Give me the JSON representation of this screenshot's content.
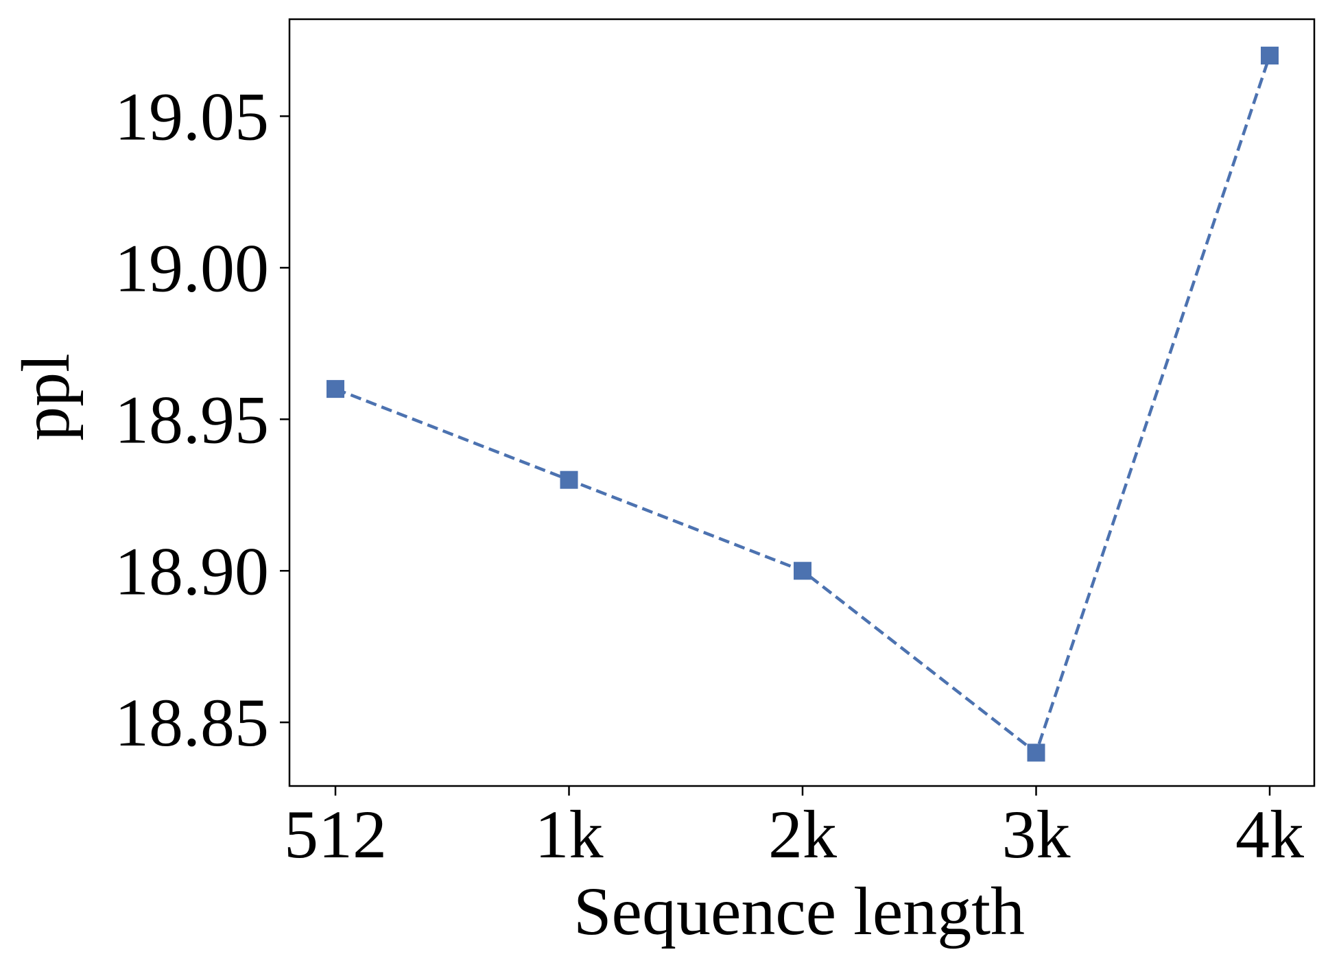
{
  "chart_data": {
    "type": "line",
    "categories": [
      "512",
      "1k",
      "2k",
      "3k",
      "4k"
    ],
    "series": [
      {
        "values": [
          18.96,
          18.93,
          18.9,
          18.84,
          19.07
        ],
        "color": "#4c72b0",
        "line_style": "dashed",
        "marker": "square"
      }
    ],
    "title": "",
    "xlabel": "Sequence length",
    "ylabel": "ppl",
    "ylim": [
      18.829,
      19.082
    ],
    "yticks": [
      18.85,
      18.9,
      18.95,
      19.0,
      19.05
    ],
    "ytick_labels": [
      "18.85",
      "18.90",
      "18.95",
      "19.00",
      "19.05"
    ],
    "grid": false,
    "legend": "none"
  }
}
